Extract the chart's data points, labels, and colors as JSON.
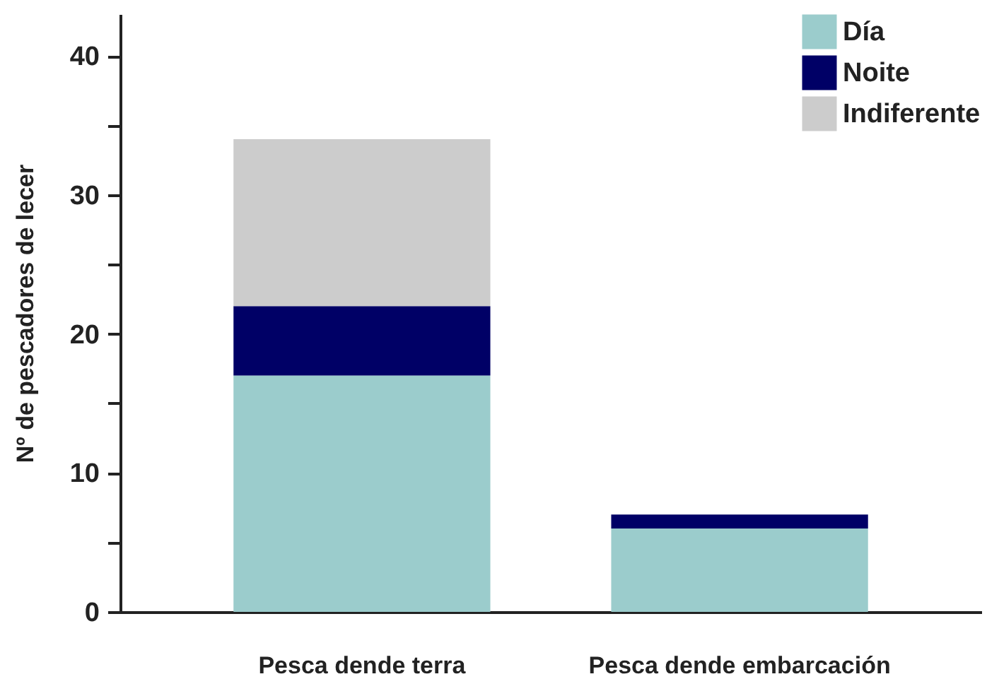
{
  "chart_data": {
    "type": "bar",
    "ylabel": "Nº de pescadores de lecer",
    "categories": [
      "Pesca dende terra",
      "Pesca dende embarcación"
    ],
    "stacked": true,
    "legend": "top right",
    "ylim": [
      0,
      43
    ],
    "yticks": [
      0,
      {
        "value": 5,
        "label": null
      },
      10,
      {
        "value": 15,
        "label": null
      },
      20,
      {
        "value": 25,
        "label": null
      },
      30,
      {
        "value": 35,
        "label": null
      },
      40
    ],
    "series": [
      {
        "name": "Día",
        "color": "#9bcccc",
        "values": [
          17,
          6
        ]
      },
      {
        "name": "Noite",
        "color": "#000066",
        "values": [
          5,
          1
        ]
      },
      {
        "name": "Indiferente",
        "color": "#cccccc",
        "values": [
          12,
          0
        ]
      }
    ]
  }
}
